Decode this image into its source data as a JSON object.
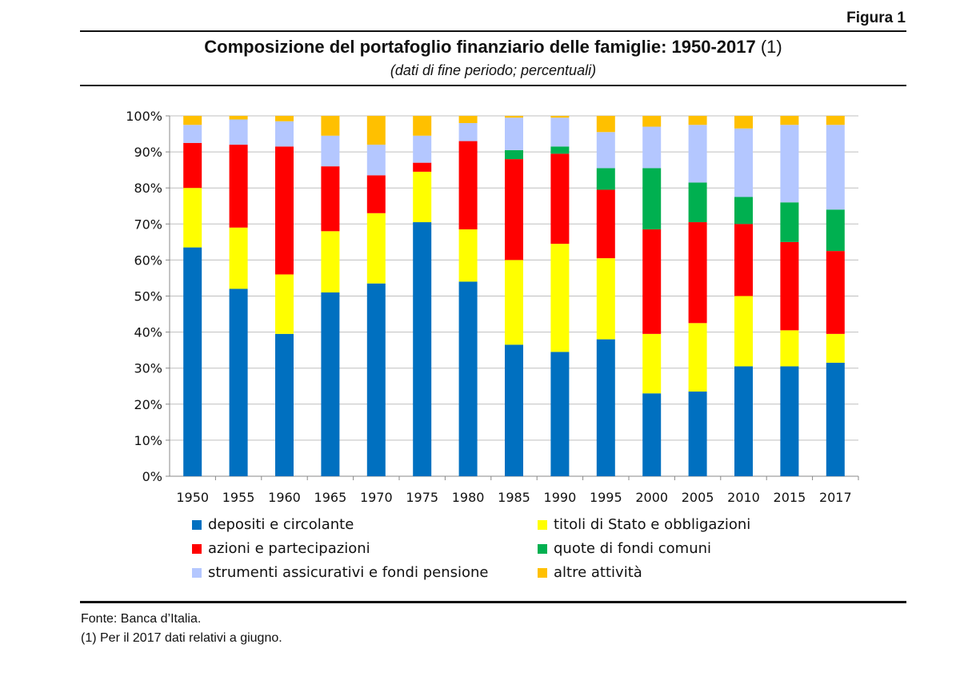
{
  "figure_label": "Figura 1",
  "title_main": "Composizione del portafoglio finanziario delle famiglie: 1950-2017",
  "title_note": "(1)",
  "subtitle": "(dati di fine periodo; percentuali)",
  "footer": {
    "source": "Fonte: Banca d’Italia.",
    "note": "(1) Per il 2017 dati relativi a giugno."
  },
  "chart_data": {
    "type": "bar",
    "stacked": true,
    "ylim": [
      0,
      100
    ],
    "yticks": [
      "0%",
      "10%",
      "20%",
      "30%",
      "40%",
      "50%",
      "60%",
      "70%",
      "80%",
      "90%",
      "100%"
    ],
    "grid": true,
    "legend_position": "bottom",
    "categories": [
      "1950",
      "1955",
      "1960",
      "1965",
      "1970",
      "1975",
      "1980",
      "1985",
      "1990",
      "1995",
      "2000",
      "2005",
      "2010",
      "2015",
      "2017"
    ],
    "series": [
      {
        "name": "depositi e circolante",
        "color": "#0070C0",
        "values": [
          63.5,
          52.0,
          39.5,
          51.0,
          53.5,
          70.5,
          54.0,
          36.5,
          34.5,
          38.0,
          23.0,
          23.5,
          30.5,
          30.5,
          31.5
        ]
      },
      {
        "name": "titoli di Stato e obbligazioni",
        "color": "#FFFF00",
        "values": [
          16.5,
          17.0,
          16.5,
          17.0,
          19.5,
          14.0,
          14.5,
          23.5,
          30.0,
          22.5,
          16.5,
          19.0,
          19.5,
          10.0,
          8.0
        ]
      },
      {
        "name": "azioni e partecipazioni",
        "color": "#FF0000",
        "values": [
          12.5,
          23.0,
          35.5,
          18.0,
          10.5,
          2.5,
          24.5,
          28.0,
          25.0,
          19.0,
          29.0,
          28.0,
          20.0,
          24.5,
          23.0
        ]
      },
      {
        "name": "quote di fondi comuni",
        "color": "#00B050",
        "values": [
          0.0,
          0.0,
          0.0,
          0.0,
          0.0,
          0.0,
          0.0,
          2.5,
          2.0,
          6.0,
          17.0,
          11.0,
          7.5,
          11.0,
          11.5
        ]
      },
      {
        "name": "strumenti assicurativi e fondi pensione",
        "color": "#B4C7FF",
        "values": [
          5.0,
          7.0,
          7.0,
          8.5,
          8.5,
          7.5,
          5.0,
          9.0,
          8.0,
          10.0,
          11.5,
          16.0,
          19.0,
          21.5,
          23.5
        ]
      },
      {
        "name": "altre attività",
        "color": "#FFC000",
        "values": [
          2.5,
          1.0,
          1.5,
          5.5,
          8.0,
          5.5,
          2.0,
          0.5,
          0.5,
          4.5,
          3.0,
          2.5,
          3.5,
          2.5,
          2.5
        ]
      }
    ]
  }
}
